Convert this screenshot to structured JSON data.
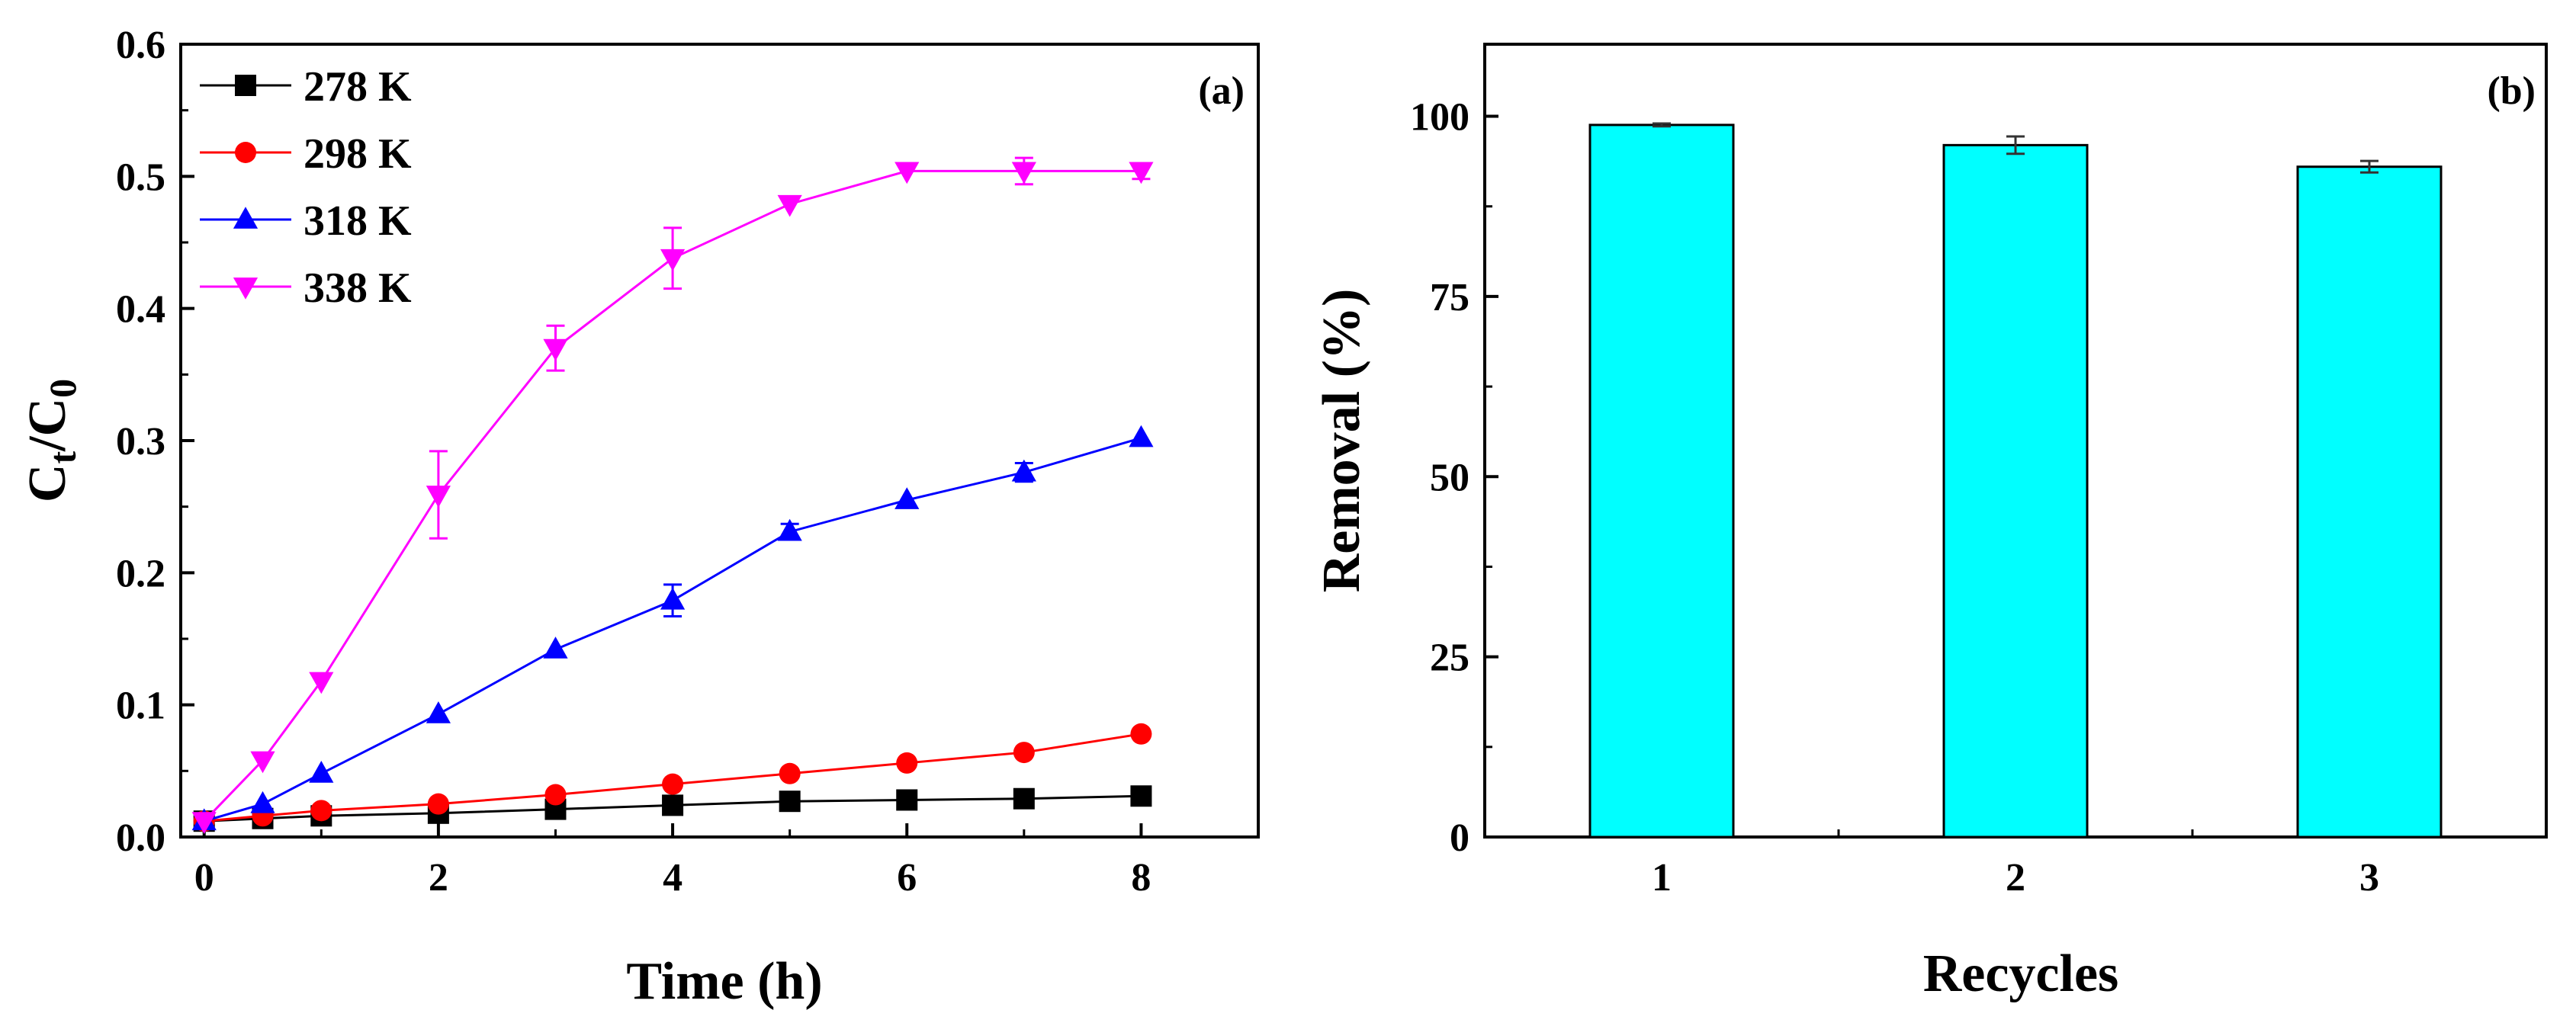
{
  "chart_data": [
    {
      "type": "line",
      "panel_label": "(a)",
      "xlabel": "Time (h)",
      "ylabel_main": "C",
      "ylabel_sub1": "t",
      "ylabel_mid": "/C",
      "ylabel_sub2": "0",
      "xlim": [
        -0.2,
        9.0
      ],
      "ylim": [
        0,
        0.6
      ],
      "xticks": [
        0,
        2,
        4,
        6,
        8
      ],
      "xtick_labels": [
        "0",
        "2",
        "4",
        "6",
        "8"
      ],
      "yticks": [
        0.0,
        0.1,
        0.2,
        0.3,
        0.4,
        0.5,
        0.6
      ],
      "ytick_labels": [
        "0.0",
        "0.1",
        "0.2",
        "0.3",
        "0.4",
        "0.5",
        "0.6"
      ],
      "legend_position": "top-left",
      "series": [
        {
          "name": "278 K",
          "color": "#000000",
          "marker": "square",
          "x": [
            0,
            0.5,
            1,
            2,
            3,
            4,
            5,
            6,
            7,
            8
          ],
          "y": [
            0.012,
            0.014,
            0.016,
            0.018,
            0.021,
            0.024,
            0.027,
            0.028,
            0.029,
            0.031
          ],
          "err": [
            0,
            0,
            0,
            0,
            0,
            0,
            0,
            0,
            0,
            0
          ]
        },
        {
          "name": "298 K",
          "color": "#ff0000",
          "marker": "circle",
          "x": [
            0,
            0.5,
            1,
            2,
            3,
            4,
            5,
            6,
            7,
            8
          ],
          "y": [
            0.012,
            0.016,
            0.02,
            0.025,
            0.032,
            0.04,
            0.048,
            0.056,
            0.064,
            0.078
          ],
          "err": [
            0,
            0,
            0,
            0,
            0,
            0,
            0,
            0,
            0,
            0
          ]
        },
        {
          "name": "318 K",
          "color": "#0000ff",
          "marker": "triangle-up",
          "x": [
            0,
            0.5,
            1,
            2,
            3,
            4,
            5,
            6,
            7,
            8
          ],
          "y": [
            0.012,
            0.025,
            0.048,
            0.093,
            0.142,
            0.179,
            0.231,
            0.255,
            0.276,
            0.302
          ],
          "err": [
            0,
            0,
            0,
            0,
            0,
            0.012,
            0.006,
            0,
            0.007,
            0
          ]
        },
        {
          "name": "338 K",
          "color": "#ff00ff",
          "marker": "triangle-down",
          "x": [
            0,
            0.5,
            1,
            2,
            3,
            4,
            5,
            6,
            7,
            8
          ],
          "y": [
            0.012,
            0.058,
            0.118,
            0.259,
            0.37,
            0.438,
            0.479,
            0.504,
            0.504,
            0.504
          ],
          "err": [
            0,
            0,
            0,
            0.033,
            0.017,
            0.023,
            0,
            0,
            0.01,
            0.006
          ]
        }
      ]
    },
    {
      "type": "bar",
      "panel_label": "(b)",
      "xlabel": "Recycles",
      "ylabel": "Removal (%)",
      "ylim": [
        0,
        110
      ],
      "yticks": [
        0,
        25,
        50,
        75,
        100
      ],
      "ytick_labels": [
        "0",
        "25",
        "50",
        "75",
        "100"
      ],
      "categories": [
        "1",
        "2",
        "3"
      ],
      "values": [
        98.8,
        96.0,
        93.0
      ],
      "errors": [
        0.2,
        1.2,
        0.8
      ],
      "bar_color": "#00ffff"
    }
  ]
}
